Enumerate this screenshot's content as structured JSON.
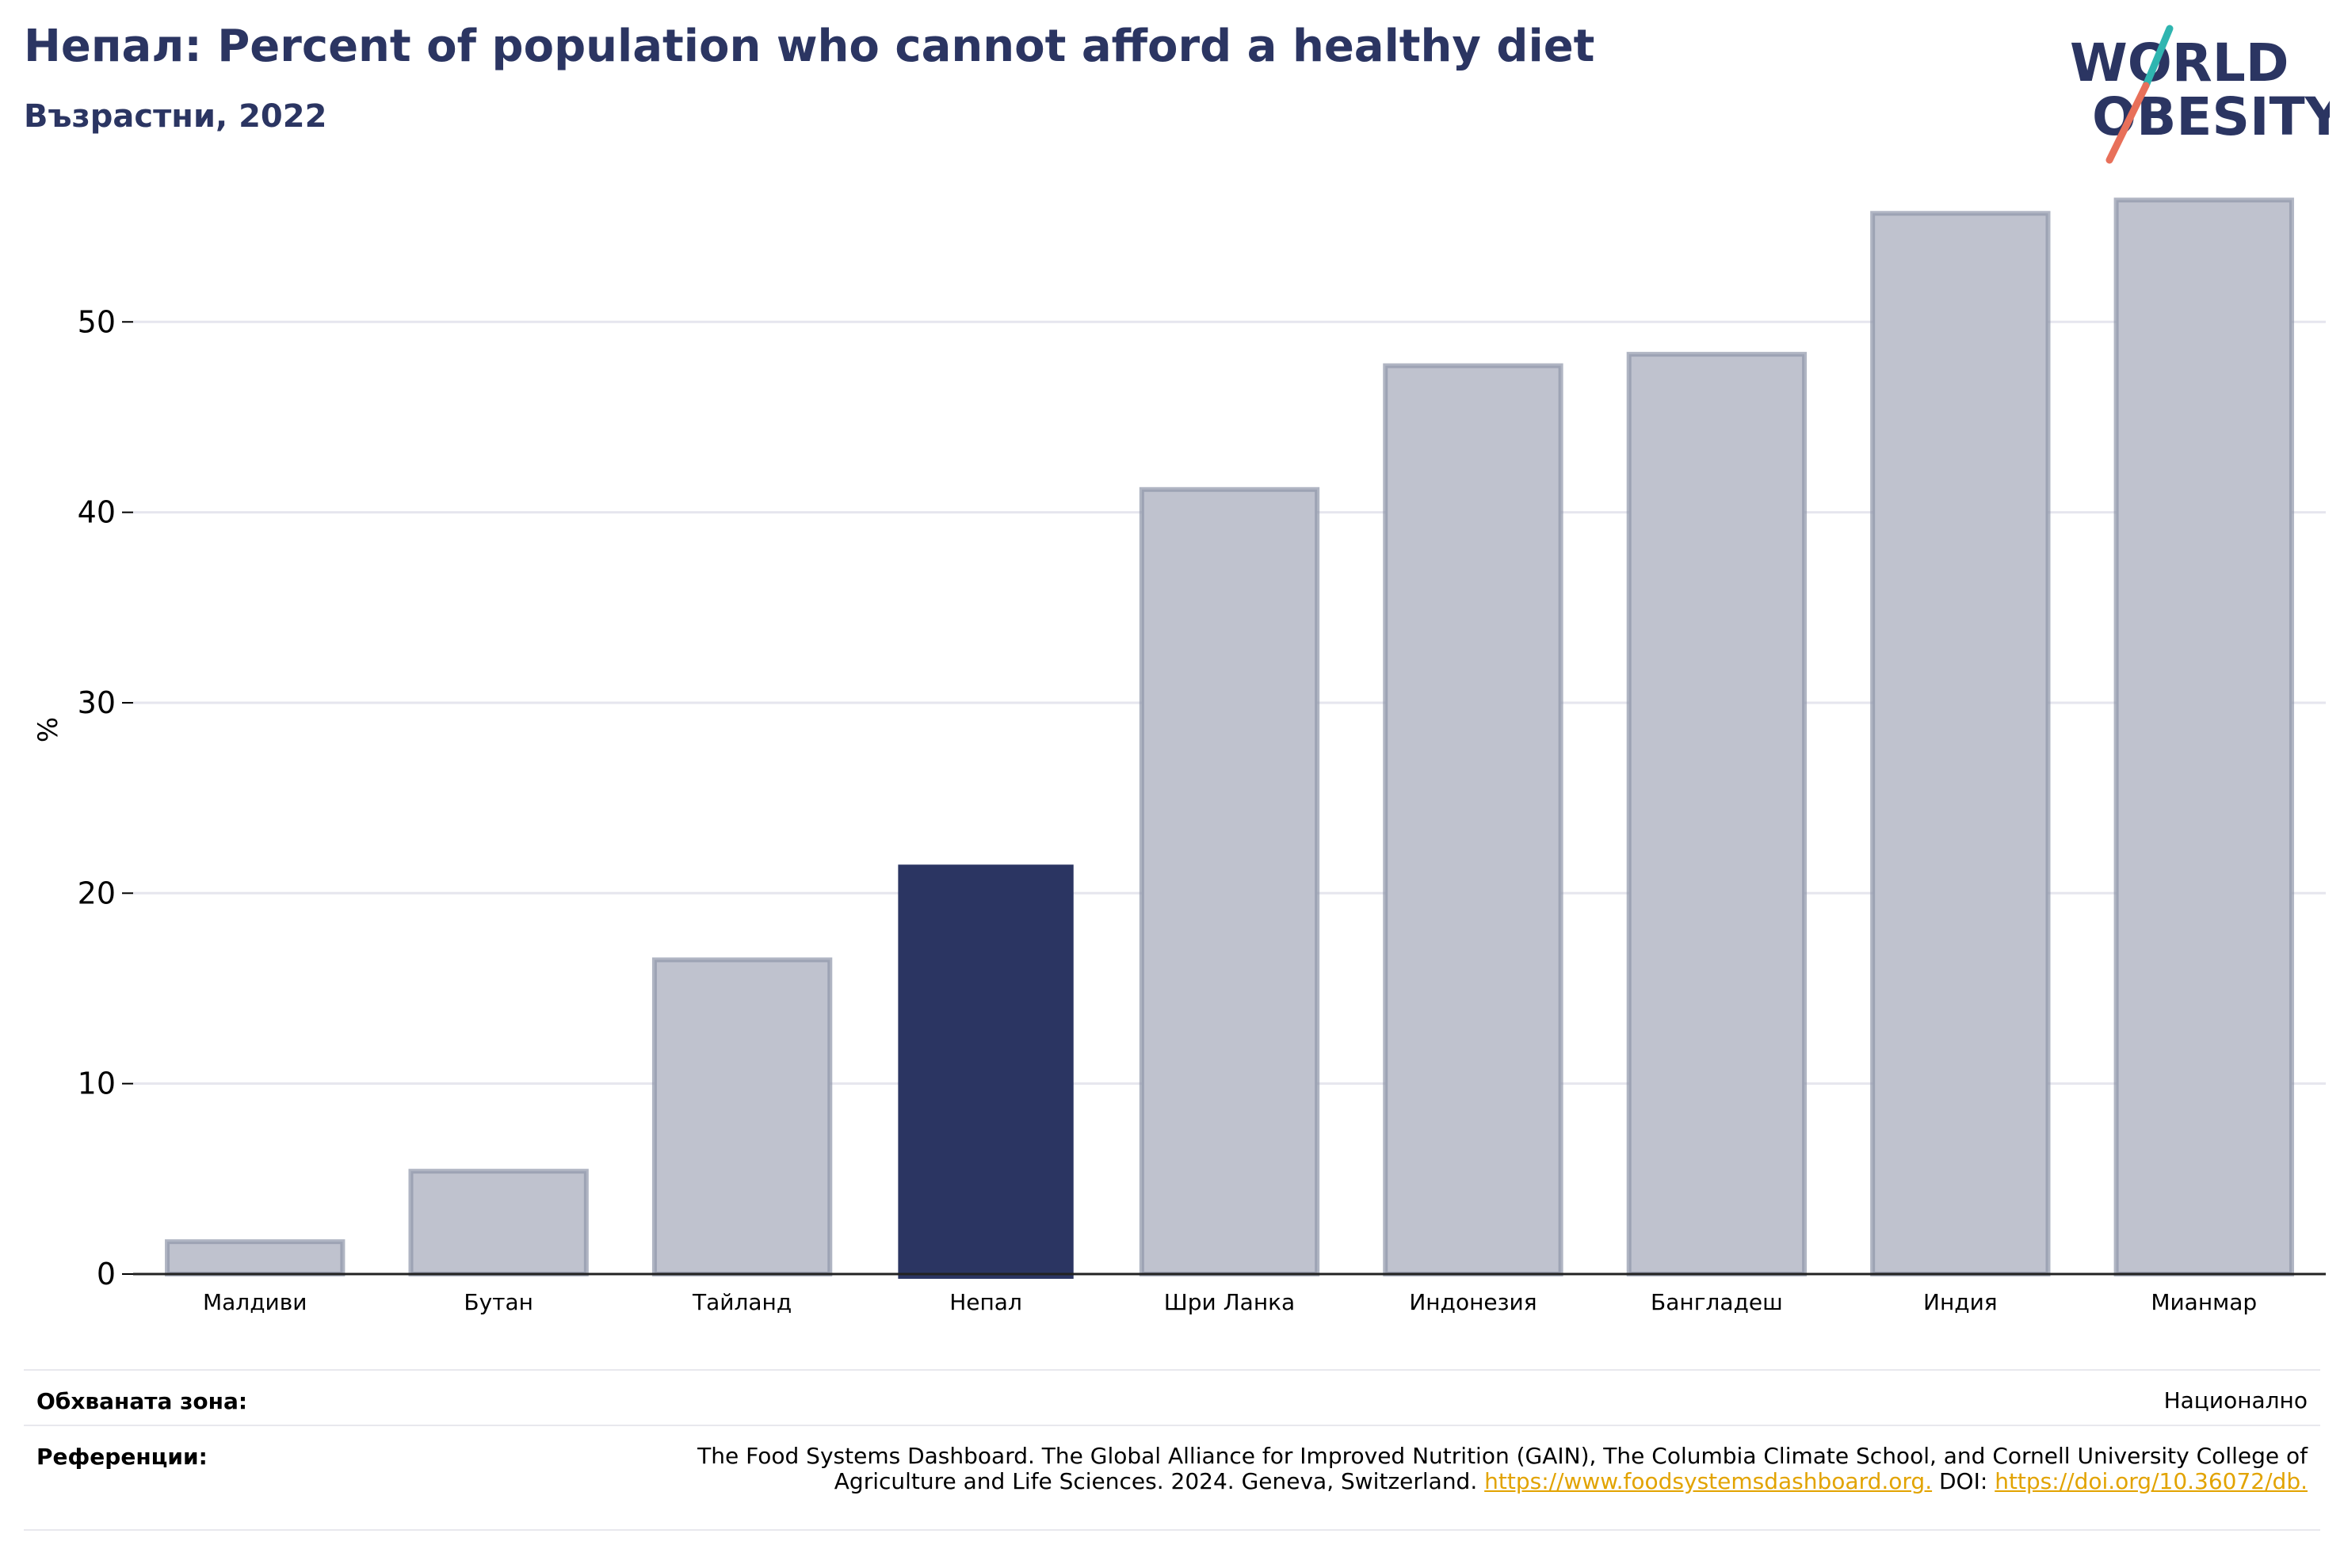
{
  "header": {
    "title": "Непал: Percent of population who cannot afford a healthy diet",
    "subtitle": "Възрастни, 2022"
  },
  "logo": {
    "line1": "WORLD",
    "line2": "OBESITY"
  },
  "colors": {
    "title": "#2b3562",
    "highlight_bar": "#2b3562",
    "other_bar_fill": "#bfc2ce",
    "other_bar_stroke": "#8f95aa",
    "grid": "#e6e6ee",
    "logo_teal": "#2fb5b0",
    "logo_coral": "#e8705a",
    "link": "#e2a300"
  },
  "chart_data": {
    "type": "bar",
    "ylabel": "%",
    "xlabel": "",
    "ylim": [
      0,
      58
    ],
    "yticks": [
      0,
      10,
      20,
      30,
      40,
      50
    ],
    "grid": true,
    "categories": [
      "Малдиви",
      "Бутан",
      "Тайланд",
      "Непал",
      "Шри Ланка",
      "Индонезия",
      "Бангладеш",
      "Индия",
      "Мианмар"
    ],
    "values": [
      1.7,
      5.4,
      16.5,
      21.5,
      41.2,
      47.7,
      48.3,
      55.7,
      56.4
    ],
    "highlight": "Непал"
  },
  "footer": {
    "coverage_label": "Обхваната зона:",
    "coverage_value": "Национално",
    "references_label": "Референции:",
    "references_text": "The Food Systems Dashboard. The Global Alliance for Improved Nutrition (GAIN), The Columbia Climate School, and Cornell University College of Agriculture and Life Sciences. 2024. Geneva, Switzerland.",
    "references_link1": "https://www.foodsystemsdashboard.org.",
    "references_doi_label": "DOI:",
    "references_link2": "https://doi.org/10.36072/db."
  }
}
